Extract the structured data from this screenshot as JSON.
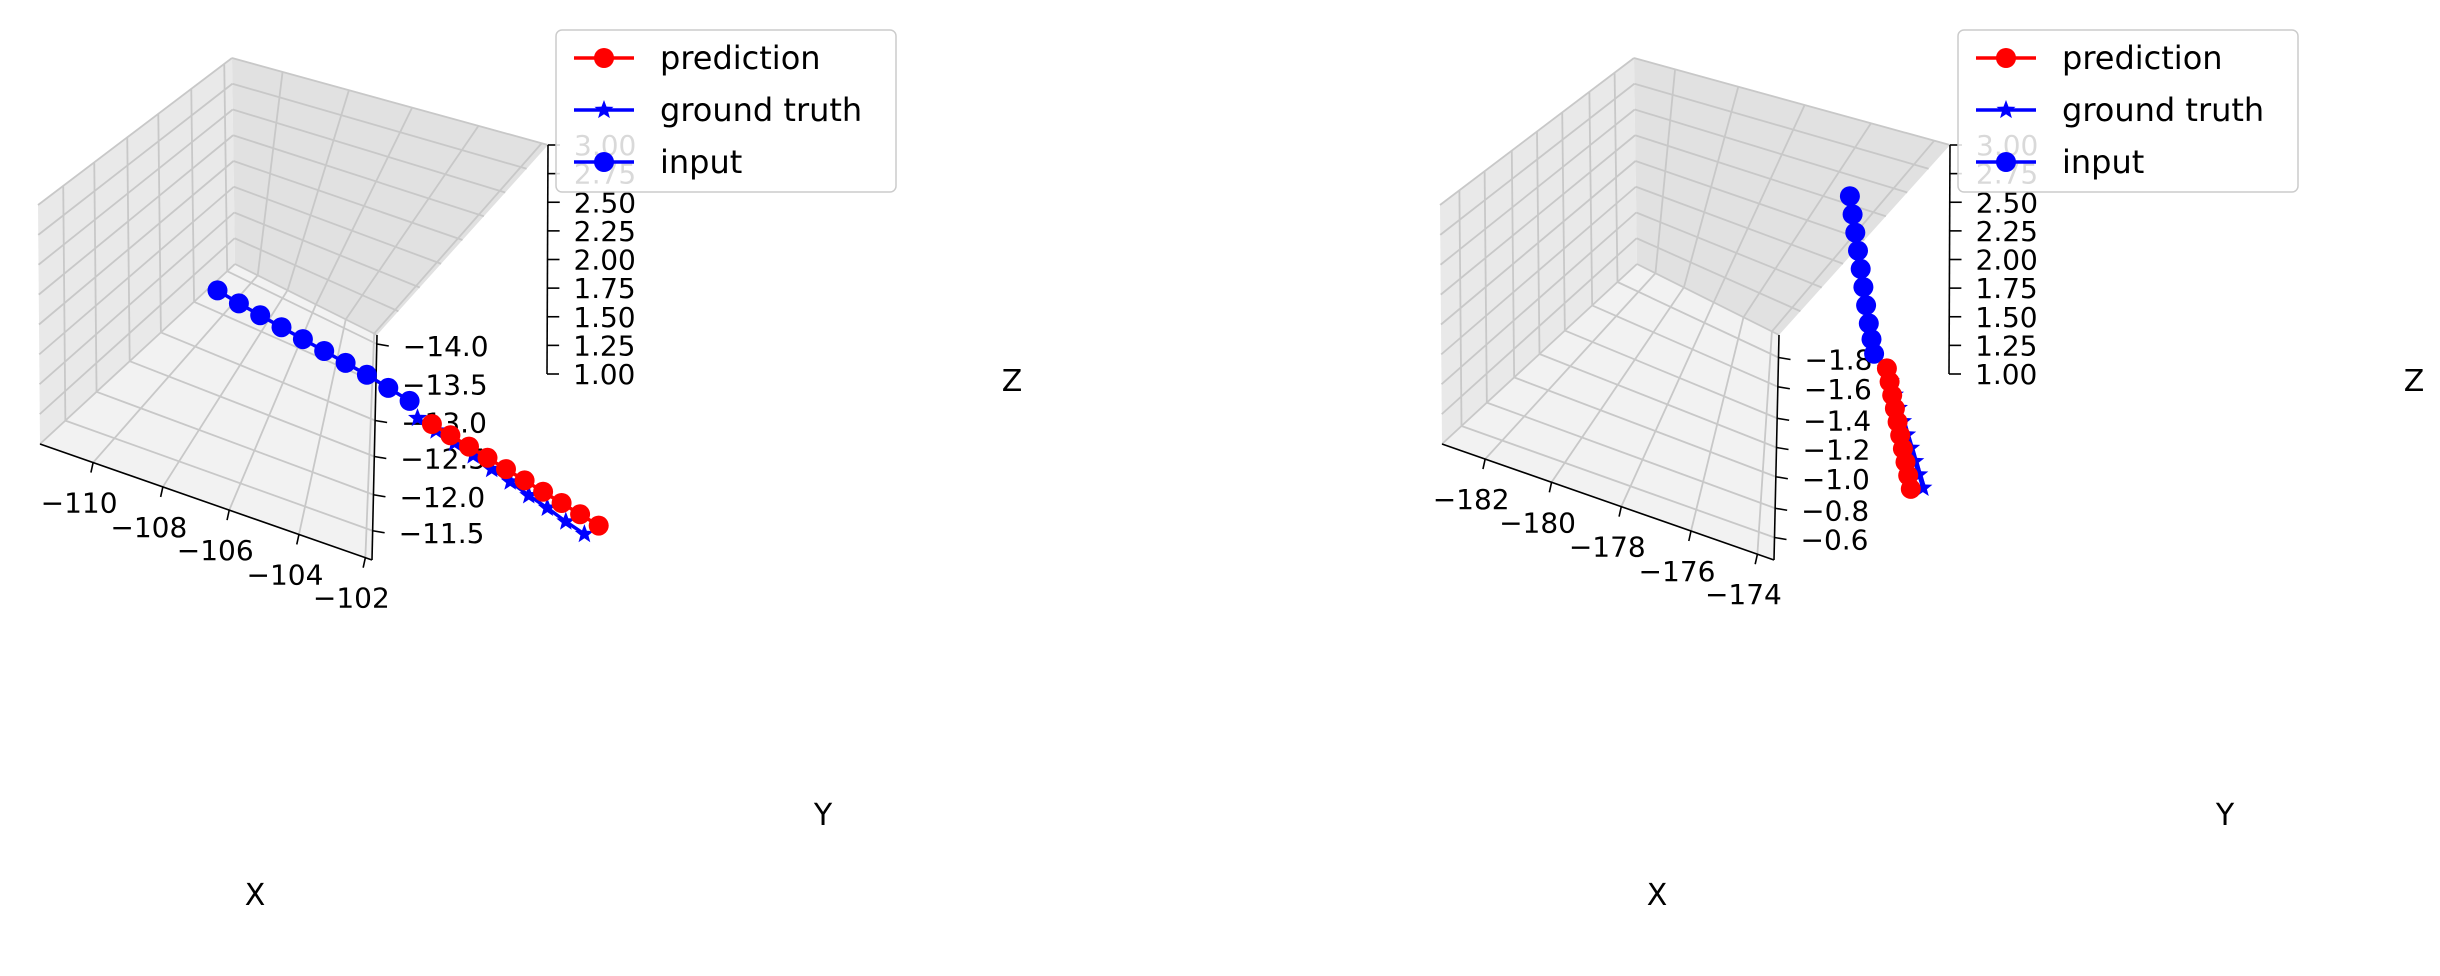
{
  "chart_data": [
    {
      "type": "line",
      "projection": "3d",
      "title": "",
      "xlabel": "X",
      "ylabel": "Y",
      "zlabel": "Z",
      "xticks": [
        "−110",
        "−108",
        "−106",
        "−104",
        "−102"
      ],
      "yticks": [
        "−11.5",
        "−12.0",
        "−12.5",
        "−13.0",
        "−13.5",
        "−14.0"
      ],
      "zticks": [
        "1.00",
        "1.25",
        "1.50",
        "1.75",
        "2.00",
        "2.25",
        "2.50",
        "2.75",
        "3.00"
      ],
      "zlim": [
        1.0,
        3.0
      ],
      "grid": true,
      "legend_position": "top-right",
      "series": [
        {
          "name": "prediction",
          "color": "#ff0000",
          "marker": "circle",
          "points": [
            {
              "x": -101.3,
              "y": -11.95,
              "z": 1.78
            },
            {
              "x": -100.6,
              "y": -11.86,
              "z": 1.8
            },
            {
              "x": -99.9,
              "y": -11.77,
              "z": 1.82
            },
            {
              "x": -99.2,
              "y": -11.68,
              "z": 1.84
            },
            {
              "x": -98.5,
              "y": -11.59,
              "z": 1.86
            },
            {
              "x": -97.8,
              "y": -11.5,
              "z": 1.88
            },
            {
              "x": -97.1,
              "y": -11.41,
              "z": 1.9
            },
            {
              "x": -96.4,
              "y": -11.32,
              "z": 1.92
            },
            {
              "x": -95.7,
              "y": -11.23,
              "z": 1.94
            },
            {
              "x": -95.0,
              "y": -11.14,
              "z": 1.96
            }
          ]
        },
        {
          "name": "ground truth",
          "color": "#0000ff",
          "marker": "star",
          "points": [
            {
              "x": -101.9,
              "y": -12.05,
              "z": 1.72
            },
            {
              "x": -101.2,
              "y": -11.96,
              "z": 1.73
            },
            {
              "x": -100.5,
              "y": -11.87,
              "z": 1.74
            },
            {
              "x": -99.8,
              "y": -11.78,
              "z": 1.75
            },
            {
              "x": -99.1,
              "y": -11.69,
              "z": 1.75
            },
            {
              "x": -98.4,
              "y": -11.6,
              "z": 1.76
            },
            {
              "x": -97.7,
              "y": -11.51,
              "z": 1.76
            },
            {
              "x": -97.0,
              "y": -11.42,
              "z": 1.77
            },
            {
              "x": -96.3,
              "y": -11.33,
              "z": 1.77
            },
            {
              "x": -95.6,
              "y": -11.24,
              "z": 1.78
            }
          ]
        },
        {
          "name": "input",
          "color": "#0000ff",
          "marker": "circle",
          "points": [
            {
              "x": -109.6,
              "y": -13.1,
              "z": 1.5
            },
            {
              "x": -108.8,
              "y": -13.0,
              "z": 1.52
            },
            {
              "x": -108.0,
              "y": -12.9,
              "z": 1.55
            },
            {
              "x": -107.2,
              "y": -12.8,
              "z": 1.58
            },
            {
              "x": -106.4,
              "y": -12.7,
              "z": 1.61
            },
            {
              "x": -105.6,
              "y": -12.6,
              "z": 1.64
            },
            {
              "x": -104.8,
              "y": -12.5,
              "z": 1.67
            },
            {
              "x": -104.0,
              "y": -12.4,
              "z": 1.7
            },
            {
              "x": -103.2,
              "y": -12.3,
              "z": 1.72
            },
            {
              "x": -102.4,
              "y": -12.2,
              "z": 1.74
            }
          ]
        }
      ]
    },
    {
      "type": "line",
      "projection": "3d",
      "title": "",
      "xlabel": "X",
      "ylabel": "Y",
      "zlabel": "Z",
      "xticks": [
        "−182",
        "−180",
        "−178",
        "−176",
        "−174"
      ],
      "yticks": [
        "−0.6",
        "−0.8",
        "−1.0",
        "−1.2",
        "−1.4",
        "−1.6",
        "−1.8"
      ],
      "zticks": [
        "1.00",
        "1.25",
        "1.50",
        "1.75",
        "2.00",
        "2.25",
        "2.50",
        "2.75",
        "3.00"
      ],
      "zlim": [
        1.0,
        3.0
      ],
      "grid": true,
      "legend_position": "top-right",
      "series": [
        {
          "name": "prediction",
          "color": "#ff0000",
          "marker": "circle",
          "points": [
            {
              "x": -173.9,
              "y": -1.34,
              "z": 1.69
            },
            {
              "x": -173.7,
              "y": -1.31,
              "z": 1.63
            },
            {
              "x": -173.5,
              "y": -1.28,
              "z": 1.57
            },
            {
              "x": -173.3,
              "y": -1.25,
              "z": 1.51
            },
            {
              "x": -173.1,
              "y": -1.22,
              "z": 1.45
            },
            {
              "x": -172.9,
              "y": -1.19,
              "z": 1.39
            },
            {
              "x": -172.7,
              "y": -1.16,
              "z": 1.33
            },
            {
              "x": -172.5,
              "y": -1.13,
              "z": 1.27
            },
            {
              "x": -172.3,
              "y": -1.1,
              "z": 1.21
            },
            {
              "x": -172.1,
              "y": -1.07,
              "z": 1.15
            }
          ]
        },
        {
          "name": "ground truth",
          "color": "#0000ff",
          "marker": "star",
          "points": [
            {
              "x": -174.0,
              "y": -1.36,
              "z": 1.66
            },
            {
              "x": -173.8,
              "y": -1.34,
              "z": 1.59
            },
            {
              "x": -173.6,
              "y": -1.32,
              "z": 1.52
            },
            {
              "x": -173.4,
              "y": -1.3,
              "z": 1.45
            },
            {
              "x": -173.2,
              "y": -1.28,
              "z": 1.38
            },
            {
              "x": -173.0,
              "y": -1.26,
              "z": 1.31
            },
            {
              "x": -172.8,
              "y": -1.24,
              "z": 1.24
            },
            {
              "x": -172.6,
              "y": -1.22,
              "z": 1.17
            },
            {
              "x": -172.4,
              "y": -1.2,
              "z": 1.1
            },
            {
              "x": -172.2,
              "y": -1.18,
              "z": 1.03
            }
          ]
        },
        {
          "name": "input",
          "color": "#0000ff",
          "marker": "circle",
          "points": [
            {
              "x": -176.2,
              "y": -1.64,
              "z": 2.58
            },
            {
              "x": -176.0,
              "y": -1.61,
              "z": 2.48
            },
            {
              "x": -175.8,
              "y": -1.58,
              "z": 2.38
            },
            {
              "x": -175.6,
              "y": -1.55,
              "z": 2.28
            },
            {
              "x": -175.4,
              "y": -1.52,
              "z": 2.18
            },
            {
              "x": -175.2,
              "y": -1.49,
              "z": 2.08
            },
            {
              "x": -175.0,
              "y": -1.46,
              "z": 1.98
            },
            {
              "x": -174.8,
              "y": -1.43,
              "z": 1.88
            },
            {
              "x": -174.6,
              "y": -1.4,
              "z": 1.8
            },
            {
              "x": -174.4,
              "y": -1.37,
              "z": 1.73
            }
          ]
        }
      ]
    }
  ]
}
